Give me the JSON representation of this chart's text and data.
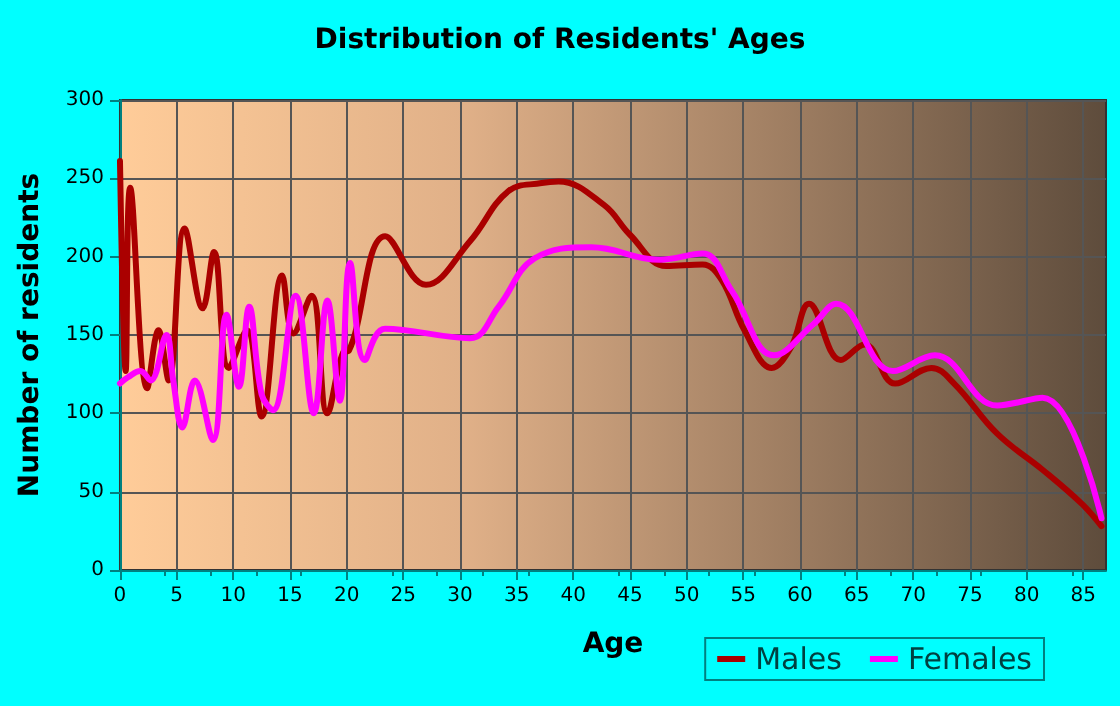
{
  "chart_data": {
    "type": "line",
    "title": "Distribution of Residents' Ages",
    "xlabel": "Age",
    "ylabel": "Number of residents",
    "xlim": [
      0,
      87
    ],
    "xticks": [
      0,
      5,
      10,
      15,
      20,
      25,
      30,
      35,
      40,
      45,
      50,
      55,
      60,
      65,
      70,
      75,
      80,
      85
    ],
    "ylim": [
      0,
      300
    ],
    "yticks": [
      0,
      50,
      100,
      150,
      200,
      250,
      300
    ],
    "grid": true,
    "legend": "bottom right",
    "marker": "none",
    "line_style": "solid",
    "series": [
      {
        "name": "Males",
        "color": "#aa0000",
        "x": [
          0,
          0.5,
          0.9,
          2.4,
          3.4,
          4.3,
          5.7,
          7.3,
          8.3,
          9.6,
          11.2,
          12.5,
          14.3,
          15.3,
          16.9,
          18.3,
          19.7,
          20.2,
          23.4,
          27,
          30.9,
          34.3,
          37.2,
          38.7,
          42.7,
          45,
          48.2,
          51.4,
          53.1,
          55.1,
          57.5,
          59.2,
          60.8,
          63.6,
          65.7,
          68.4,
          71.6,
          73.6,
          77.4,
          81.4,
          84.9,
          86.6
        ],
        "values": [
          261,
          127,
          244,
          116,
          153,
          121,
          218,
          167,
          203,
          129,
          153,
          98,
          188,
          151,
          175,
          100,
          139,
          140,
          213,
          182,
          210,
          242,
          247,
          248,
          233,
          214,
          194,
          195,
          185,
          153,
          129,
          142,
          170,
          134,
          144,
          119,
          129,
          119,
          87,
          64,
          42,
          28
        ]
      },
      {
        "name": "Females",
        "color": "#ff00ff",
        "x": [
          0,
          0.7,
          1.8,
          2.7,
          4.1,
          4.7,
          5.5,
          6.6,
          8.2,
          9.4,
          10.5,
          11.4,
          12.5,
          13.5,
          15.5,
          17.1,
          18.3,
          19.4,
          20.3,
          21.6,
          23.4,
          30.9,
          33.4,
          36.6,
          41.6,
          47.6,
          51.4,
          54,
          57.7,
          61.2,
          63.2,
          68.2,
          71.9,
          77.4,
          81.4,
          86.6
        ],
        "values": [
          119,
          123,
          127,
          121,
          150,
          121,
          91,
          121,
          83,
          163,
          117,
          168,
          112,
          102,
          175,
          100,
          172,
          108,
          196,
          134,
          154,
          148,
          168,
          199,
          206,
          198,
          202,
          178,
          137,
          157,
          170,
          127,
          137,
          105,
          110,
          33
        ]
      }
    ]
  }
}
